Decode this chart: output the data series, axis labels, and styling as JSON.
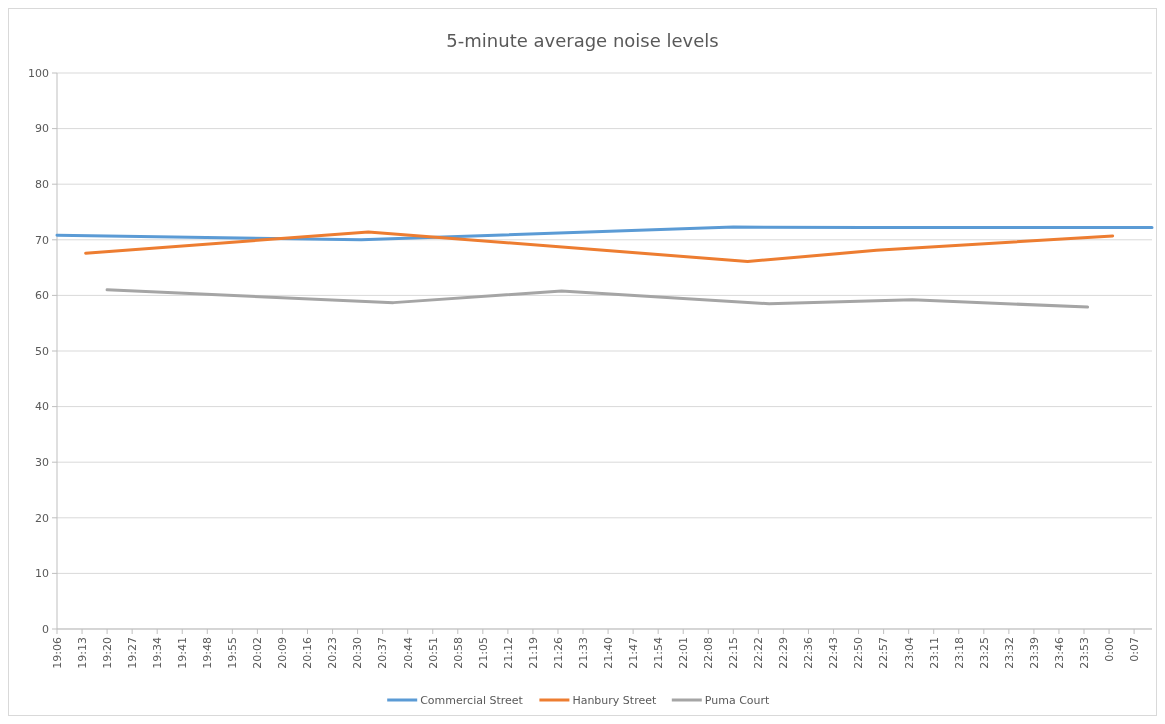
{
  "chart_data": {
    "type": "line",
    "title": "5-minute average noise levels",
    "xlim": [
      "2000-01-01T19:06",
      "2000-01-02T00:12"
    ],
    "xticks": [
      {
        "value": "2000-01-01T19:06",
        "label": "19:06"
      },
      {
        "value": "2000-01-01T19:13",
        "label": "19:13"
      },
      {
        "value": "2000-01-01T19:20",
        "label": "19:20"
      },
      {
        "value": "2000-01-01T19:27",
        "label": "19:27"
      },
      {
        "value": "2000-01-01T19:34",
        "label": "19:34"
      },
      {
        "value": "2000-01-01T19:41",
        "label": "19:41"
      },
      {
        "value": "2000-01-01T19:48",
        "label": "19:48"
      },
      {
        "value": "2000-01-01T19:55",
        "label": "19:55"
      },
      {
        "value": "2000-01-01T20:02",
        "label": "20:02"
      },
      {
        "value": "2000-01-01T20:09",
        "label": "20:09"
      },
      {
        "value": "2000-01-01T20:16",
        "label": "20:16"
      },
      {
        "value": "2000-01-01T20:23",
        "label": "20:23"
      },
      {
        "value": "2000-01-01T20:30",
        "label": "20:30"
      },
      {
        "value": "2000-01-01T20:37",
        "label": "20:37"
      },
      {
        "value": "2000-01-01T20:44",
        "label": "20:44"
      },
      {
        "value": "2000-01-01T20:51",
        "label": "20:51"
      },
      {
        "value": "2000-01-01T20:58",
        "label": "20:58"
      },
      {
        "value": "2000-01-01T21:05",
        "label": "21:05"
      },
      {
        "value": "2000-01-01T21:12",
        "label": "21:12"
      },
      {
        "value": "2000-01-01T21:19",
        "label": "21:19"
      },
      {
        "value": "2000-01-01T21:26",
        "label": "21:26"
      },
      {
        "value": "2000-01-01T21:33",
        "label": "21:33"
      },
      {
        "value": "2000-01-01T21:40",
        "label": "21:40"
      },
      {
        "value": "2000-01-01T21:47",
        "label": "21:47"
      },
      {
        "value": "2000-01-01T21:54",
        "label": "21:54"
      },
      {
        "value": "2000-01-01T22:01",
        "label": "22:01"
      },
      {
        "value": "2000-01-01T22:08",
        "label": "22:08"
      },
      {
        "value": "2000-01-01T22:15",
        "label": "22:15"
      },
      {
        "value": "2000-01-01T22:22",
        "label": "22:22"
      },
      {
        "value": "2000-01-01T22:29",
        "label": "22:29"
      },
      {
        "value": "2000-01-01T22:36",
        "label": "22:36"
      },
      {
        "value": "2000-01-01T22:43",
        "label": "22:43"
      },
      {
        "value": "2000-01-01T22:50",
        "label": "22:50"
      },
      {
        "value": "2000-01-01T22:57",
        "label": "22:57"
      },
      {
        "value": "2000-01-01T23:04",
        "label": "23:04"
      },
      {
        "value": "2000-01-01T23:11",
        "label": "23:11"
      },
      {
        "value": "2000-01-01T23:18",
        "label": "23:18"
      },
      {
        "value": "2000-01-01T23:25",
        "label": "23:25"
      },
      {
        "value": "2000-01-01T23:32",
        "label": "23:32"
      },
      {
        "value": "2000-01-01T23:39",
        "label": "23:39"
      },
      {
        "value": "2000-01-01T23:46",
        "label": "23:46"
      },
      {
        "value": "2000-01-01T23:53",
        "label": "23:53"
      },
      {
        "value": "2000-01-02T00:00",
        "label": "0:00"
      },
      {
        "value": "2000-01-02T00:07",
        "label": "0:07"
      }
    ],
    "ylim": [
      0,
      100
    ],
    "yticks": [
      0,
      10,
      20,
      30,
      40,
      50,
      60,
      70,
      80,
      90,
      100
    ],
    "grid": "y",
    "legend": "bottom",
    "marker": "none",
    "line_style": "solid",
    "series": [
      {
        "name": "Commercial Street",
        "color": "#5b9bd5",
        "x": [
          "2000-01-01T19:06",
          "2000-01-01T20:31",
          "2000-01-01T22:15",
          "2000-01-01T22:52",
          "2000-01-02T00:12"
        ],
        "values": [
          70.8,
          70.0,
          72.3,
          72.2,
          72.2
        ]
      },
      {
        "name": "Hanbury Street",
        "color": "#ed7d31",
        "x": [
          "2000-01-01T19:14",
          "2000-01-01T20:33",
          "2000-01-01T22:19",
          "2000-01-01T22:55",
          "2000-01-02T00:01"
        ],
        "values": [
          67.6,
          71.4,
          66.1,
          68.1,
          70.7
        ]
      },
      {
        "name": "Puma Court",
        "color": "#a5a5a5",
        "x": [
          "2000-01-01T19:20",
          "2000-01-01T20:40",
          "2000-01-01T21:27",
          "2000-01-01T22:25",
          "2000-01-01T23:05",
          "2000-01-01T23:54"
        ],
        "values": [
          61.0,
          58.7,
          60.8,
          58.5,
          59.2,
          57.9
        ]
      }
    ]
  }
}
